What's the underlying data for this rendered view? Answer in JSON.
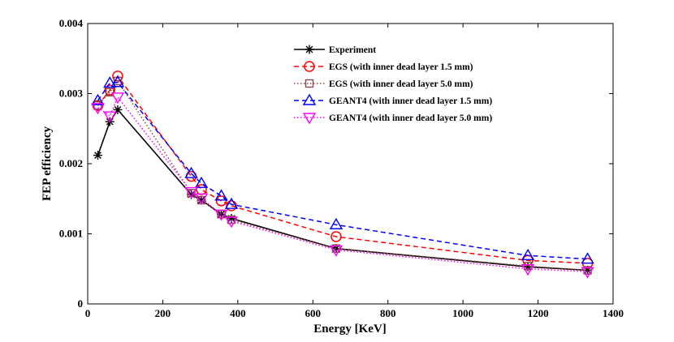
{
  "chart_data": {
    "type": "line",
    "title": "",
    "xlabel": "Energy [KeV]",
    "ylabel": "FEP efficiency",
    "xlim": [
      0,
      1400
    ],
    "ylim": [
      0,
      0.004
    ],
    "xticks": [
      0,
      200,
      400,
      600,
      800,
      1000,
      1200,
      1400
    ],
    "xtick_labels": [
      "0",
      "200",
      "400",
      "600",
      "800",
      "1000",
      "1200",
      "1400"
    ],
    "yticks": [
      0,
      0.001,
      0.002,
      0.003,
      0.004
    ],
    "ytick_labels": [
      "0",
      "0.001",
      "0.002",
      "0.003",
      "0.004"
    ],
    "grid": false,
    "legend_position": "top-right",
    "series": [
      {
        "name": "Experiment",
        "color": "#000000",
        "line_style": "solid",
        "marker": "asterisk",
        "x": [
          27,
          59,
          80,
          276,
          303,
          356,
          383,
          662,
          1173,
          1332
        ],
        "y": [
          0.00212,
          0.0026,
          0.00277,
          0.00156,
          0.00148,
          0.00128,
          0.00122,
          0.00079,
          0.00053,
          0.00048
        ]
      },
      {
        "name": "EGS (with inner dead layer 1.5 mm)",
        "color": "#ff0000",
        "line_style": "dashed",
        "marker": "circle",
        "x": [
          27,
          59,
          80,
          276,
          303,
          356,
          383,
          662,
          1173,
          1332
        ],
        "y": [
          0.00283,
          0.00305,
          0.00325,
          0.00182,
          0.00163,
          0.00147,
          0.0014,
          0.00096,
          0.00062,
          0.00058
        ]
      },
      {
        "name": "EGS (with inner dead layer 5.0 mm)",
        "color": "#8b4a4a",
        "line_style": "dotted",
        "marker": "square",
        "x": [
          27,
          59,
          80,
          276,
          303,
          356,
          383,
          662,
          1173,
          1332
        ],
        "y": [
          0.00283,
          0.00302,
          0.00318,
          0.00158,
          0.00148,
          0.00128,
          0.0012,
          0.00079,
          0.00054,
          0.00048
        ]
      },
      {
        "name": "GEANT4 (with inner dead layer 1.5 mm)",
        "color": "#0000ff",
        "line_style": "dashed",
        "marker": "triangle-up",
        "x": [
          27,
          59,
          80,
          276,
          303,
          356,
          383,
          662,
          1173,
          1332
        ],
        "y": [
          0.0029,
          0.00315,
          0.00316,
          0.00186,
          0.00172,
          0.00154,
          0.00142,
          0.00113,
          0.00069,
          0.00064
        ]
      },
      {
        "name": "GEANT4 (with inner dead layer 5.0 mm)",
        "color": "#ff00ff",
        "line_style": "dotted",
        "marker": "triangle-down",
        "x": [
          27,
          59,
          80,
          276,
          303,
          356,
          383,
          662,
          1173,
          1332
        ],
        "y": [
          0.0028,
          0.00268,
          0.00295,
          0.0016,
          0.00151,
          0.00128,
          0.00118,
          0.00077,
          0.0005,
          0.00046
        ]
      }
    ]
  }
}
